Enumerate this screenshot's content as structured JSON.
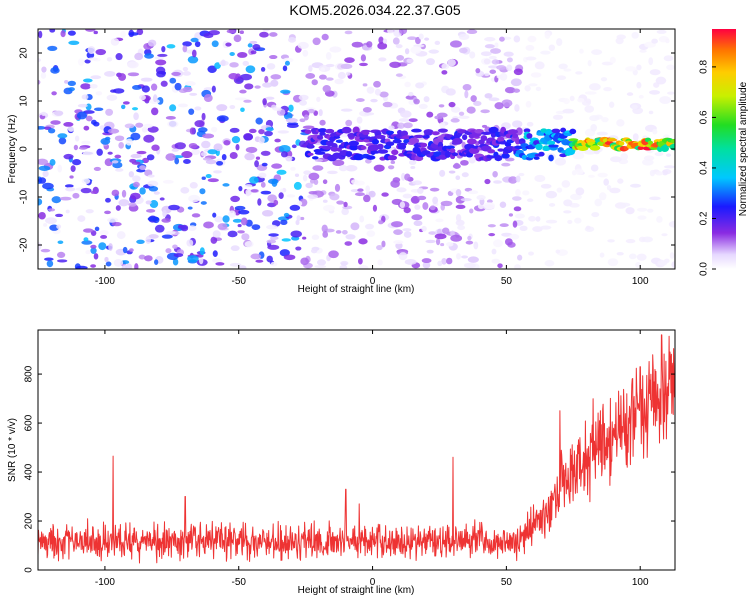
{
  "title": "KOM5.2026.034.22.37.G05",
  "chart_data": [
    {
      "type": "heatmap",
      "xlabel": "Height of straight line (km)",
      "ylabel": "Frequency (Hz)",
      "xlim": [
        -125,
        113
      ],
      "ylim": [
        -25,
        25
      ],
      "xticks": [
        -100,
        -50,
        0,
        50,
        100
      ],
      "yticks": [
        -20,
        -10,
        0,
        10,
        20
      ],
      "colorbar": {
        "label": "Normalized spectral amplitude",
        "range": [
          0,
          0.95
        ],
        "ticks": [
          0.0,
          0.2,
          0.4,
          0.6,
          0.8
        ],
        "tick_labels": [
          "0.0",
          "0.2",
          "0.4",
          "0.6",
          "0.8"
        ]
      },
      "ridge": {
        "frequency": 1,
        "segments": [
          {
            "x_start": -25,
            "x_end": 55,
            "amplitude": 0.25
          },
          {
            "x_start": 55,
            "x_end": 75,
            "amplitude": 0.4
          },
          {
            "x_start": 75,
            "x_end": 113,
            "amplitude": 0.9
          }
        ]
      },
      "background_noise_amplitude": {
        "x_below_-25": 0.2,
        "x_above_-25": 0.08
      }
    },
    {
      "type": "line",
      "xlabel": "Height of straight line (km)",
      "ylabel": "SNR (10 * v/v)",
      "xlim": [
        -125,
        113
      ],
      "ylim": [
        0,
        980
      ],
      "xticks": [
        -100,
        -50,
        0,
        50,
        100
      ],
      "yticks": [
        0,
        200,
        400,
        600,
        800
      ],
      "series": [
        {
          "name": "SNR",
          "color": "#ee3333",
          "trend_x": [
            -125,
            -100,
            -50,
            0,
            55,
            60,
            70,
            80,
            90,
            100,
            113
          ],
          "trend_mean": [
            120,
            115,
            115,
            115,
            115,
            170,
            330,
            460,
            550,
            640,
            760
          ],
          "spread": [
            60,
            60,
            60,
            60,
            60,
            80,
            110,
            130,
            150,
            160,
            170
          ],
          "spikes": [
            [
              -97,
              465
            ],
            [
              -70,
              300
            ],
            [
              -10,
              330
            ],
            [
              -5,
              270
            ],
            [
              30,
              460
            ],
            [
              70,
              650
            ],
            [
              95,
              720
            ],
            [
              100,
              830
            ],
            [
              108,
              960
            ]
          ]
        }
      ]
    }
  ]
}
